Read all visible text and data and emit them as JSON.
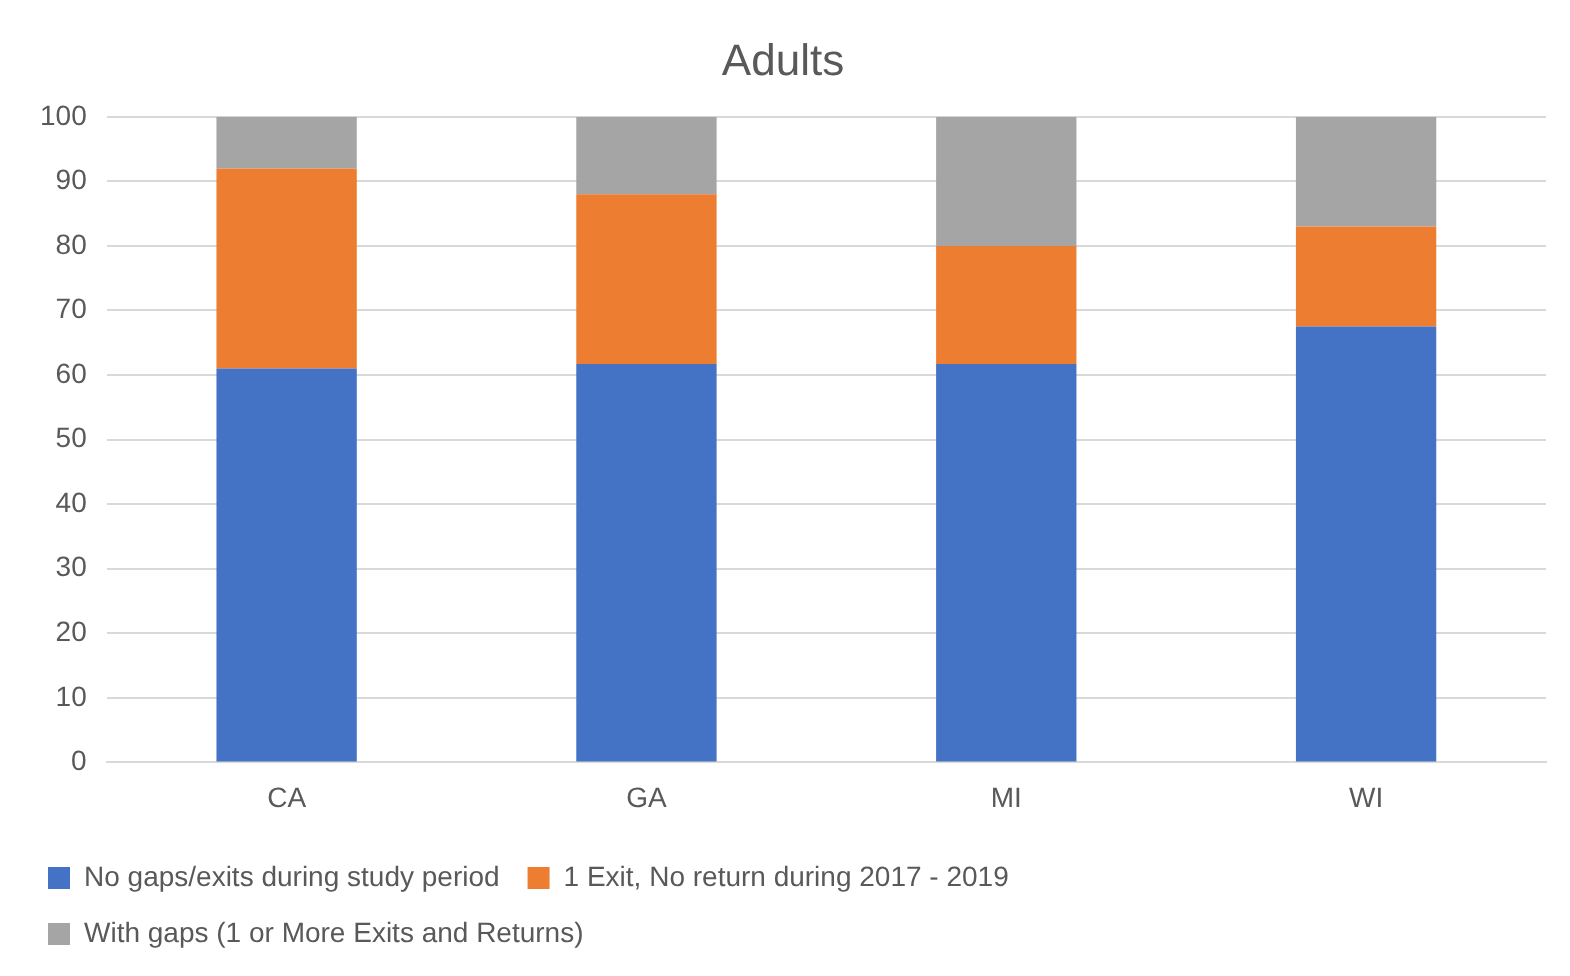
{
  "chart_data": {
    "type": "bar",
    "title": "Adults",
    "categories": [
      "CA",
      "GA",
      "MI",
      "WI"
    ],
    "stacked": true,
    "series": [
      {
        "name": "No gaps/exits during study period",
        "color": "#4472c4",
        "values": [
          61,
          61.7,
          61.7,
          67.5
        ]
      },
      {
        "name": "1 Exit, No return during 2017 - 2019",
        "color": "#ed7d31",
        "values": [
          31,
          26.3,
          18.3,
          15.5
        ]
      },
      {
        "name": "With gaps (1 or More Exits and Returns)",
        "color": "#a5a5a5",
        "values": [
          8,
          12,
          20,
          17
        ]
      }
    ],
    "ylim": [
      0,
      100
    ],
    "yticks": [
      0,
      10,
      20,
      30,
      40,
      50,
      60,
      70,
      80,
      90,
      100
    ],
    "grid": "y",
    "legend": "bottom"
  }
}
